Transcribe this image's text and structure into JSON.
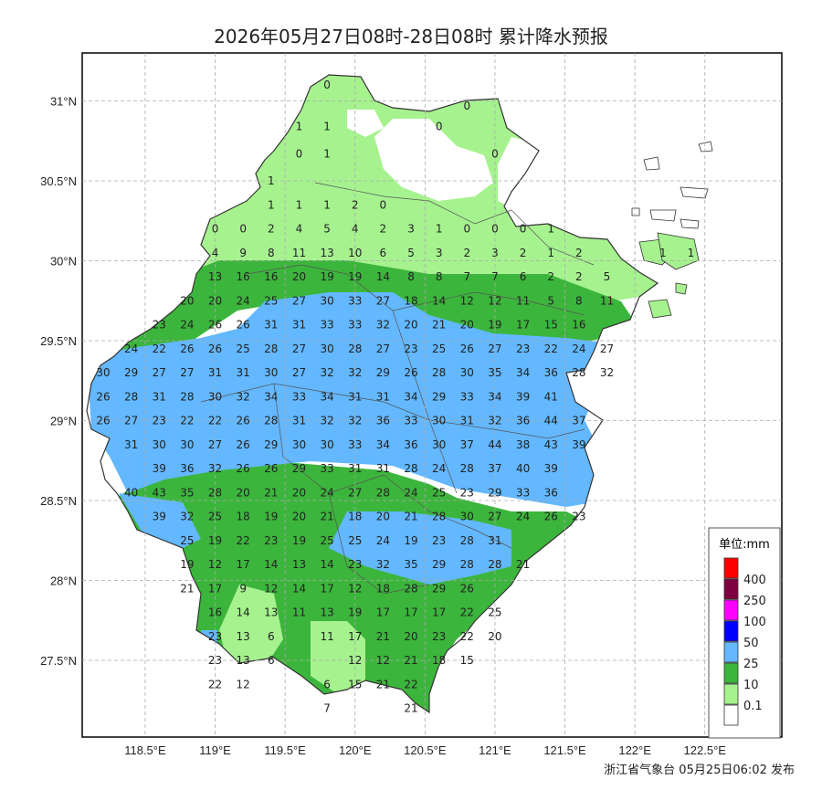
{
  "title": "2026年05月27日08时-28日08时 累计降水预报",
  "footer": "浙江省气象台 05月25日06:02 发布",
  "map": {
    "lat_labels": [
      "31°N",
      "30.5°N",
      "30°N",
      "29.5°N",
      "29°N",
      "28.5°N",
      "28°N",
      "27.5°N"
    ],
    "lat_values": [
      31,
      30.5,
      30,
      29.5,
      29,
      28.5,
      28,
      27.5
    ],
    "lon_labels": [
      "118.5°E",
      "119°E",
      "119.5°E",
      "120°E",
      "120.5°E",
      "121°E",
      "121.5°E",
      "122°E",
      "122.5°E"
    ],
    "lon_values": [
      118.5,
      119,
      119.5,
      120,
      120.5,
      121,
      121.5,
      122,
      122.5
    ],
    "lon_range": [
      118.05,
      123.05
    ],
    "lat_range": [
      27.02,
      31.3
    ],
    "grid": true
  },
  "legend": {
    "title": "单位:mm",
    "items": [
      {
        "label": "400",
        "color": "#ff0000"
      },
      {
        "label": "250",
        "color": "#7f0040"
      },
      {
        "label": "100",
        "color": "#ff00ff"
      },
      {
        "label": "50",
        "color": "#0000ff"
      },
      {
        "label": "25",
        "color": "#63b8ff"
      },
      {
        "label": "10",
        "color": "#3cb53c"
      },
      {
        "label": "0.1",
        "color": "#a6f28f"
      },
      {
        "label": "",
        "color": "#ffffff"
      }
    ]
  },
  "station_values": [
    {
      "row": 31.1,
      "start": 119.8,
      "vals": [
        "0"
      ]
    },
    {
      "row": 30.97,
      "start": 120.8,
      "vals": [
        "0"
      ]
    },
    {
      "row": 30.84,
      "start": 119.6,
      "vals": [
        "1",
        "1"
      ]
    },
    {
      "row": 30.84,
      "start": 120.6,
      "vals": [
        "0"
      ]
    },
    {
      "row": 30.67,
      "start": 119.6,
      "vals": [
        "0",
        "1"
      ]
    },
    {
      "row": 30.67,
      "start": 121.0,
      "vals": [
        "0"
      ]
    },
    {
      "row": 30.5,
      "start": 119.4,
      "vals": [
        "1"
      ]
    },
    {
      "row": 30.35,
      "start": 119.4,
      "vals": [
        "1",
        "1",
        "1",
        "2",
        "0"
      ]
    },
    {
      "row": 30.2,
      "start": 119.0,
      "vals": [
        "0",
        "0",
        "2",
        "4",
        "5",
        "4",
        "2",
        "3",
        "1",
        "0",
        "0",
        "0",
        "1"
      ]
    },
    {
      "row": 30.05,
      "start": 119.0,
      "vals": [
        "4",
        "9",
        "8",
        "11",
        "13",
        "10",
        "6",
        "5",
        "3",
        "2",
        "3",
        "2",
        "1",
        "2"
      ]
    },
    {
      "row": 30.05,
      "start": 122.2,
      "vals": [
        "1",
        "1"
      ]
    },
    {
      "row": 29.9,
      "start": 119.0,
      "vals": [
        "13",
        "16",
        "16",
        "20",
        "19",
        "19",
        "14",
        "8",
        "8",
        "7",
        "7",
        "6",
        "2",
        "2",
        "5"
      ]
    },
    {
      "row": 29.75,
      "start": 118.8,
      "vals": [
        "20",
        "20",
        "24",
        "25",
        "27",
        "30",
        "33",
        "27",
        "18",
        "14",
        "12",
        "12",
        "11",
        "5",
        "8",
        "11"
      ]
    },
    {
      "row": 29.6,
      "start": 118.6,
      "vals": [
        "23",
        "24",
        "26",
        "26",
        "31",
        "31",
        "33",
        "33",
        "32",
        "20",
        "21",
        "20",
        "19",
        "17",
        "15",
        "16"
      ]
    },
    {
      "row": 29.45,
      "start": 118.4,
      "vals": [
        "24",
        "22",
        "26",
        "26",
        "25",
        "28",
        "27",
        "30",
        "28",
        "27",
        "23",
        "25",
        "26",
        "27",
        "23",
        "22",
        "24",
        "27"
      ]
    },
    {
      "row": 29.3,
      "start": 118.2,
      "vals": [
        "30",
        "29",
        "27",
        "27",
        "31",
        "31",
        "30",
        "27",
        "32",
        "32",
        "29",
        "26",
        "28",
        "30",
        "35",
        "34",
        "36",
        "28",
        "32"
      ]
    },
    {
      "row": 29.15,
      "start": 118.2,
      "vals": [
        "26",
        "28",
        "31",
        "28",
        "30",
        "32",
        "34",
        "33",
        "34",
        "31",
        "31",
        "34",
        "29",
        "33",
        "34",
        "39",
        "41"
      ]
    },
    {
      "row": 29.0,
      "start": 118.2,
      "vals": [
        "26",
        "27",
        "23",
        "22",
        "22",
        "26",
        "28",
        "31",
        "32",
        "32",
        "36",
        "33",
        "30",
        "31",
        "32",
        "36",
        "44",
        "37"
      ]
    },
    {
      "row": 28.85,
      "start": 118.4,
      "vals": [
        "31",
        "30",
        "30",
        "27",
        "26",
        "29",
        "30",
        "30",
        "33",
        "34",
        "36",
        "30",
        "37",
        "44",
        "38",
        "43",
        "39"
      ]
    },
    {
      "row": 28.7,
      "start": 118.6,
      "vals": [
        "39",
        "36",
        "32",
        "26",
        "26",
        "29",
        "33",
        "31",
        "31",
        "28",
        "24",
        "28",
        "37",
        "40",
        "39"
      ]
    },
    {
      "row": 28.55,
      "start": 118.4,
      "vals": [
        "40",
        "43",
        "35",
        "28",
        "20",
        "21",
        "20",
        "24",
        "27",
        "28",
        "24",
        "25",
        "23",
        "29",
        "33",
        "36"
      ]
    },
    {
      "row": 28.4,
      "start": 118.6,
      "vals": [
        "39",
        "32",
        "25",
        "18",
        "19",
        "20",
        "21",
        "18",
        "20",
        "21",
        "28",
        "30",
        "27",
        "24",
        "26",
        "23"
      ]
    },
    {
      "row": 28.25,
      "start": 118.8,
      "vals": [
        "25",
        "19",
        "22",
        "23",
        "19",
        "25",
        "25",
        "24",
        "19",
        "23",
        "28",
        "31"
      ]
    },
    {
      "row": 28.1,
      "start": 118.8,
      "vals": [
        "19",
        "12",
        "17",
        "14",
        "13",
        "14",
        "23",
        "32",
        "35",
        "29",
        "28",
        "28",
        "21"
      ]
    },
    {
      "row": 27.95,
      "start": 118.8,
      "vals": [
        "21",
        "17",
        "9",
        "12",
        "14",
        "17",
        "12",
        "18",
        "28",
        "29",
        "26"
      ]
    },
    {
      "row": 27.8,
      "start": 119.0,
      "vals": [
        "16",
        "14",
        "13",
        "11",
        "13",
        "19",
        "17",
        "17",
        "17",
        "22",
        "25"
      ]
    },
    {
      "row": 27.65,
      "start": 119.0,
      "vals": [
        "23",
        "13",
        "6",
        "",
        "11",
        "17",
        "21",
        "20",
        "23",
        "22",
        "20"
      ]
    },
    {
      "row": 27.5,
      "start": 119.0,
      "vals": [
        "23",
        "13",
        "6",
        "",
        "",
        "12",
        "12",
        "21",
        "18",
        "15"
      ]
    },
    {
      "row": 27.35,
      "start": 119.0,
      "vals": [
        "22",
        "12",
        "",
        "",
        "6",
        "15",
        "21",
        "22"
      ]
    },
    {
      "row": 27.2,
      "start": 119.8,
      "vals": [
        "7",
        "",
        "",
        "21"
      ]
    }
  ]
}
